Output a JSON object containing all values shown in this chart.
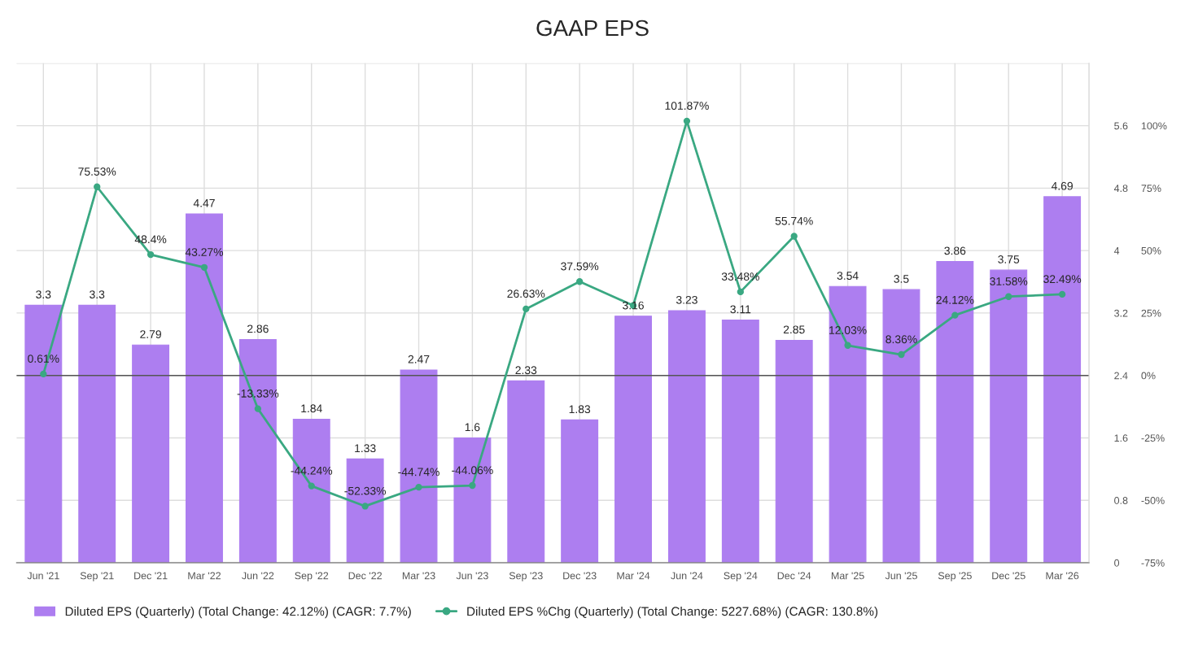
{
  "chart_data": {
    "type": "bar",
    "title": "GAAP EPS",
    "categories": [
      "Jun '21",
      "Sep '21",
      "Dec '21",
      "Mar '22",
      "Jun '22",
      "Sep '22",
      "Dec '22",
      "Mar '23",
      "Jun '23",
      "Sep '23",
      "Dec '23",
      "Mar '24",
      "Jun '24",
      "Sep '24",
      "Dec '24",
      "Mar '25",
      "Jun '25",
      "Sep '25",
      "Dec '25",
      "Mar '26"
    ],
    "series": [
      {
        "name": "Diluted EPS (Quarterly) (Total Change: 42.12%) (CAGR: 7.7%)",
        "color": "#ad7ef0",
        "values": [
          3.3,
          3.3,
          2.79,
          4.47,
          2.86,
          1.84,
          1.33,
          2.47,
          1.6,
          2.33,
          1.83,
          3.16,
          3.23,
          3.11,
          2.85,
          3.54,
          3.5,
          3.86,
          3.75,
          4.69
        ]
      },
      {
        "name": "Diluted EPS %Chg (Quarterly) (Total Change: 5227.68%) (CAGR: 130.8%)",
        "type": "line",
        "axis": "y2",
        "color": "#3aa882",
        "marker": "circle",
        "values": [
          0.61,
          75.53,
          48.4,
          43.27,
          -13.33,
          -44.24,
          -52.33,
          -44.74,
          -44.06,
          26.63,
          37.59,
          28,
          101.87,
          33.48,
          55.74,
          12.03,
          8.36,
          24.12,
          31.58,
          32.49
        ],
        "value_labels": [
          "0.61%",
          "75.53%",
          "48.4%",
          "43.27%",
          "-13.33%",
          "-44.24%",
          "-52.33%",
          "-44.74%",
          "-44.06%",
          "26.63%",
          "37.59%",
          null,
          "101.87%",
          "33.48%",
          "55.74%",
          "12.03%",
          "8.36%",
          "24.12%",
          "31.58%",
          "32.49%"
        ]
      }
    ],
    "data_labels": true,
    "ylim": [
      0,
      6.4
    ],
    "yticks": [
      0,
      0.8,
      1.6,
      2.4,
      3.2,
      4,
      4.8,
      5.6,
      {
        "value": 6.4,
        "label": null
      }
    ],
    "y2lim": [
      -75,
      125
    ],
    "y2ticks": [
      {
        "value": -75,
        "label": "-75%"
      },
      {
        "value": -50,
        "label": "-50%"
      },
      {
        "value": -25,
        "label": "-25%"
      },
      {
        "value": 0,
        "label": "0%"
      },
      {
        "value": 25,
        "label": "25%"
      },
      {
        "value": 50,
        "label": "50%"
      },
      {
        "value": 75,
        "label": "75%"
      },
      {
        "value": 100,
        "label": "100%"
      },
      {
        "value": 125,
        "label": null
      }
    ],
    "ref_lines": [
      {
        "axis": "y2",
        "value": 0,
        "color": "#555555"
      }
    ],
    "grid": true,
    "legend": "bottom"
  }
}
